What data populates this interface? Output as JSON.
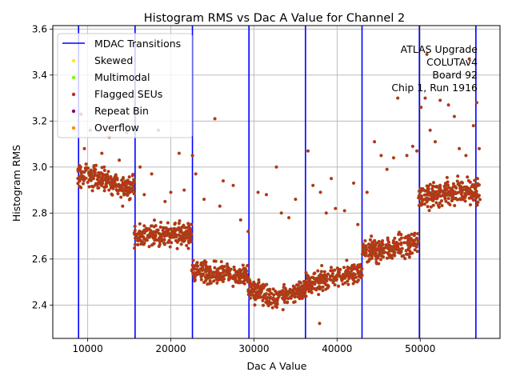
{
  "chart_data": {
    "type": "scatter",
    "title": "Histogram RMS vs Dac A Value for Channel 2",
    "xlabel": "Dac A Value",
    "ylabel": "Histogram RMS",
    "xlim": [
      5800,
      59600
    ],
    "ylim": [
      2.255,
      3.615
    ],
    "x_ticks": [
      10000,
      20000,
      30000,
      40000,
      50000
    ],
    "x_tick_labels": [
      "10000",
      "20000",
      "30000",
      "40000",
      "50000"
    ],
    "y_ticks": [
      2.4,
      2.6,
      2.8,
      3.0,
      3.2,
      3.4,
      3.6
    ],
    "y_tick_labels": [
      "2.4",
      "2.6",
      "2.8",
      "3.0",
      "3.2",
      "3.4",
      "3.6"
    ],
    "grid": true,
    "legend_position": "top-left",
    "legend": [
      {
        "label": "MDAC Transitions",
        "kind": "line",
        "color": "#0000ff"
      },
      {
        "label": "Skewed",
        "kind": "marker",
        "color": "#ffe81a"
      },
      {
        "label": "Multimodal",
        "kind": "marker",
        "color": "#7cfc00"
      },
      {
        "label": "Flagged SEUs",
        "kind": "marker",
        "color": "#c42a1c"
      },
      {
        "label": "Repeat Bin",
        "kind": "marker",
        "color": "#800080"
      },
      {
        "label": "Overflow",
        "kind": "marker",
        "color": "#ff8c00"
      }
    ],
    "annotation": [
      "ATLAS Upgrade",
      "COLUTAv4",
      "Board 92",
      "Chip 1, Run 1916"
    ],
    "mdac_transitions": [
      8900,
      15700,
      22600,
      29400,
      36200,
      43000,
      49900,
      56700
    ],
    "series": [
      {
        "name": "Flagged SEUs",
        "color": "#c42a1c",
        "edge_color": "#7a6a10",
        "segments": [
          {
            "x_range": [
              8800,
              15600
            ],
            "y_start": 2.97,
            "y_end": 2.91,
            "spread": 0.045
          },
          {
            "x_range": [
              15600,
              22500
            ],
            "y_start": 2.7,
            "y_end": 2.71,
            "spread": 0.045
          },
          {
            "x_range": [
              22500,
              29300
            ],
            "y_start": 2.54,
            "y_end": 2.53,
            "spread": 0.04
          },
          {
            "x_range": [
              29300,
              33000
            ],
            "y_start": 2.48,
            "y_end": 2.42,
            "spread": 0.04
          },
          {
            "x_range": [
              33000,
              36200
            ],
            "y_start": 2.44,
            "y_end": 2.47,
            "spread": 0.04
          },
          {
            "x_range": [
              36200,
              43000
            ],
            "y_start": 2.49,
            "y_end": 2.55,
            "spread": 0.04
          },
          {
            "x_range": [
              43000,
              49800
            ],
            "y_start": 2.63,
            "y_end": 2.67,
            "spread": 0.045
          },
          {
            "x_range": [
              49800,
              56700
            ],
            "y_start": 2.87,
            "y_end": 2.9,
            "spread": 0.045
          },
          {
            "x_range": [
              56700,
              57200
            ],
            "y_start": 2.88,
            "y_end": 2.88,
            "spread": 0.05
          }
        ],
        "outliers": [
          [
            9200,
            3.23
          ],
          [
            9600,
            3.08
          ],
          [
            10300,
            3.16
          ],
          [
            11700,
            3.06
          ],
          [
            12600,
            3.13
          ],
          [
            13800,
            3.03
          ],
          [
            14700,
            3.15
          ],
          [
            14200,
            2.83
          ],
          [
            16300,
            3.0
          ],
          [
            16800,
            2.88
          ],
          [
            17700,
            2.97
          ],
          [
            18500,
            3.16
          ],
          [
            19300,
            2.85
          ],
          [
            20000,
            2.89
          ],
          [
            21000,
            3.06
          ],
          [
            21600,
            2.9
          ],
          [
            22600,
            3.05
          ],
          [
            23000,
            2.97
          ],
          [
            24000,
            2.86
          ],
          [
            25300,
            3.21
          ],
          [
            25900,
            2.83
          ],
          [
            26300,
            2.94
          ],
          [
            27500,
            2.92
          ],
          [
            28400,
            2.77
          ],
          [
            29300,
            2.72
          ],
          [
            30100,
            2.4
          ],
          [
            30500,
            2.89
          ],
          [
            31500,
            2.88
          ],
          [
            32700,
            3.0
          ],
          [
            33300,
            2.8
          ],
          [
            34200,
            2.78
          ],
          [
            35000,
            2.86
          ],
          [
            36500,
            3.07
          ],
          [
            37100,
            2.92
          ],
          [
            38000,
            2.89
          ],
          [
            38700,
            2.8
          ],
          [
            39300,
            2.95
          ],
          [
            39800,
            2.82
          ],
          [
            40900,
            2.81
          ],
          [
            42000,
            2.93
          ],
          [
            42500,
            2.75
          ],
          [
            43600,
            2.89
          ],
          [
            44500,
            3.11
          ],
          [
            45300,
            3.05
          ],
          [
            46000,
            2.99
          ],
          [
            46800,
            3.04
          ],
          [
            47300,
            3.3
          ],
          [
            48400,
            3.05
          ],
          [
            49100,
            3.09
          ],
          [
            49600,
            3.07
          ],
          [
            50100,
            3.26
          ],
          [
            50600,
            3.3
          ],
          [
            51200,
            3.16
          ],
          [
            51800,
            3.11
          ],
          [
            52400,
            3.29
          ],
          [
            53400,
            3.27
          ],
          [
            54100,
            3.22
          ],
          [
            54700,
            3.08
          ],
          [
            55500,
            3.05
          ],
          [
            56400,
            3.18
          ],
          [
            56800,
            3.28
          ],
          [
            57100,
            3.08
          ],
          [
            56900,
            2.95
          ],
          [
            50800,
            3.49
          ],
          [
            55900,
            3.47
          ],
          [
            37900,
            2.32
          ],
          [
            33500,
            2.38
          ]
        ]
      }
    ]
  }
}
